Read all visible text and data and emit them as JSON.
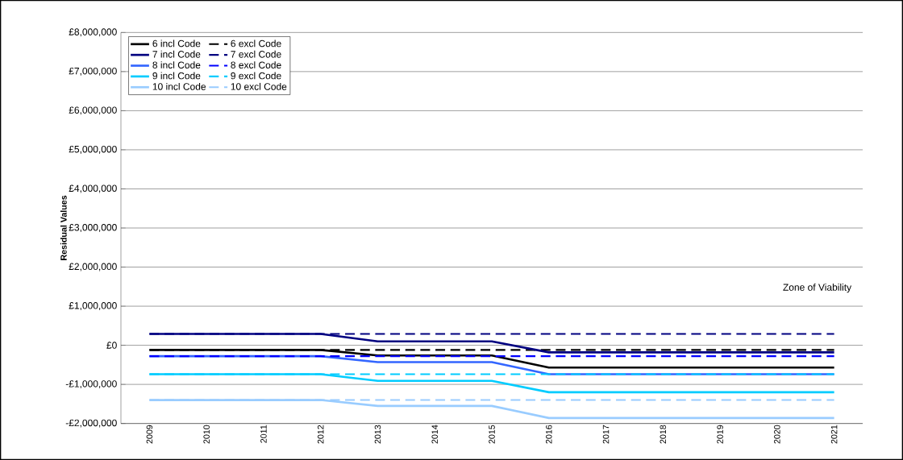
{
  "chart_data": {
    "type": "line",
    "ylabel": "Residual Values",
    "categories": [
      "2009",
      "2010",
      "2011",
      "2012",
      "2013",
      "2014",
      "2015",
      "2016",
      "2017",
      "2018",
      "2019",
      "2020",
      "2021"
    ],
    "series": [
      {
        "name": "6 incl Code",
        "color": "#000000",
        "line_style": "solid",
        "values": [
          -120000,
          -120000,
          -120000,
          -120000,
          -260000,
          -260000,
          -260000,
          -570000,
          -570000,
          -570000,
          -570000,
          -570000,
          -570000
        ]
      },
      {
        "name": "6 excl Code",
        "color": "#000000",
        "line_style": "dashed",
        "values": [
          -120000,
          -120000,
          -120000,
          -120000,
          -120000,
          -120000,
          -120000,
          -120000,
          -120000,
          -120000,
          -120000,
          -120000,
          -120000
        ]
      },
      {
        "name": "7 incl Code",
        "color": "#000080",
        "line_style": "solid",
        "values": [
          290000,
          290000,
          290000,
          290000,
          100000,
          100000,
          100000,
          -180000,
          -180000,
          -180000,
          -180000,
          -180000,
          -180000
        ]
      },
      {
        "name": "7 excl Code",
        "color": "#000080",
        "line_style": "dashed",
        "values": [
          290000,
          290000,
          290000,
          290000,
          290000,
          290000,
          290000,
          290000,
          290000,
          290000,
          290000,
          290000,
          290000
        ]
      },
      {
        "name": "8 incl Code",
        "color": "#3366ff",
        "line_style": "solid",
        "values": [
          -280000,
          -280000,
          -280000,
          -280000,
          -430000,
          -430000,
          -430000,
          -740000,
          -740000,
          -740000,
          -740000,
          -740000,
          -740000
        ]
      },
      {
        "name": "8 excl Code",
        "color": "#0000ff",
        "line_style": "dashed",
        "values": [
          -280000,
          -280000,
          -280000,
          -280000,
          -280000,
          -280000,
          -280000,
          -280000,
          -280000,
          -280000,
          -280000,
          -280000,
          -280000
        ]
      },
      {
        "name": "9 incl Code",
        "color": "#00ccff",
        "line_style": "solid",
        "values": [
          -740000,
          -740000,
          -740000,
          -740000,
          -910000,
          -910000,
          -910000,
          -1200000,
          -1200000,
          -1200000,
          -1200000,
          -1200000,
          -1200000
        ]
      },
      {
        "name": "9 excl Code",
        "color": "#00ccff",
        "line_style": "dashed",
        "values": [
          -740000,
          -740000,
          -740000,
          -740000,
          -740000,
          -740000,
          -740000,
          -740000,
          -740000,
          -740000,
          -740000,
          -740000,
          -740000
        ]
      },
      {
        "name": "10 incl Code",
        "color": "#99ccff",
        "line_style": "solid",
        "values": [
          -1400000,
          -1400000,
          -1400000,
          -1400000,
          -1550000,
          -1550000,
          -1550000,
          -1860000,
          -1860000,
          -1860000,
          -1860000,
          -1860000,
          -1860000
        ]
      },
      {
        "name": "10 excl Code",
        "color": "#99ccff",
        "line_style": "dashed",
        "values": [
          -1400000,
          -1400000,
          -1400000,
          -1400000,
          -1400000,
          -1400000,
          -1400000,
          -1400000,
          -1400000,
          -1400000,
          -1400000,
          -1400000,
          -1400000
        ]
      }
    ],
    "ylim": [
      -2000000,
      8000000
    ],
    "yticks": [
      {
        "value": -2000000,
        "label": "-£2,000,000"
      },
      {
        "value": -1000000,
        "label": "-£1,000,000"
      },
      {
        "value": 0,
        "label": "£0"
      },
      {
        "value": 1000000,
        "label": "£1,000,000"
      },
      {
        "value": 2000000,
        "label": "£2,000,000"
      },
      {
        "value": 3000000,
        "label": "£3,000,000"
      },
      {
        "value": 4000000,
        "label": "£4,000,000"
      },
      {
        "value": 5000000,
        "label": "£5,000,000"
      },
      {
        "value": 6000000,
        "label": "£6,000,000"
      },
      {
        "value": 7000000,
        "label": "£7,000,000"
      },
      {
        "value": 8000000,
        "label": "£8,000,000"
      }
    ],
    "grid": "y",
    "legend": "top left",
    "marker": "none",
    "annotations": [
      "Zone of Viability"
    ]
  }
}
